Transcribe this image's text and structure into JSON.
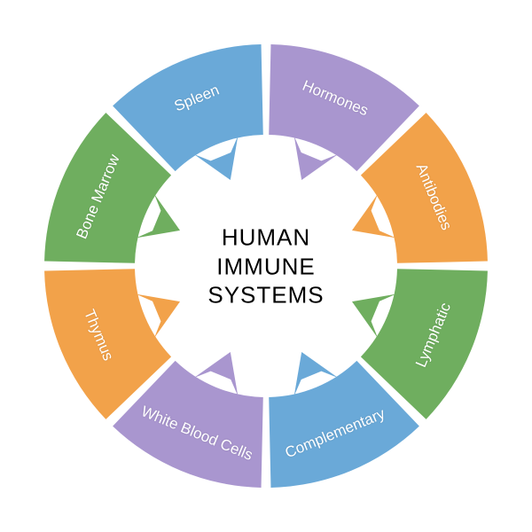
{
  "diagram": {
    "type": "radial-segment-wheel",
    "center_title": "HUMAN\nIMMUNE\nSYSTEMS",
    "center_title_fontsize": 26,
    "center_title_color": "#000000",
    "background_color": "#ffffff",
    "outer_radius": 250,
    "inner_radius": 148,
    "arrow_inner_radius": 105,
    "segment_count": 8,
    "gap_deg": 2.5,
    "label_fontsize": 17,
    "label_color": "#ffffff",
    "segments": [
      {
        "label": "Hormones",
        "color": "#a996cf"
      },
      {
        "label": "Antibodies",
        "color": "#f2a24a"
      },
      {
        "label": "Lymphatic",
        "color": "#6fae5f"
      },
      {
        "label": "Complementary",
        "color": "#6aa9d8"
      },
      {
        "label": "White Blood Cells",
        "color": "#a996cf"
      },
      {
        "label": "Thymus",
        "color": "#f2a24a"
      },
      {
        "label": "Bone Marrow",
        "color": "#6fae5f"
      },
      {
        "label": "Spleen",
        "color": "#6aa9d8"
      }
    ]
  },
  "watermark": ""
}
